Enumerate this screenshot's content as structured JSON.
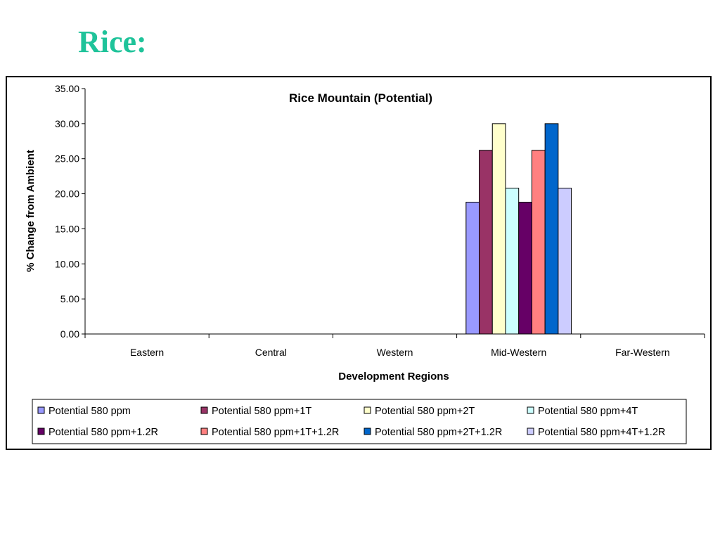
{
  "slide": {
    "title": "Rice:"
  },
  "chart_data": {
    "type": "bar",
    "title": "Rice Mountain (Potential)",
    "xlabel": "Development Regions",
    "ylabel": "% Change from Ambient",
    "ylim": [
      0,
      35
    ],
    "yticks": [
      0,
      5,
      10,
      15,
      20,
      25,
      30,
      35
    ],
    "ytick_labels": [
      "0.00",
      "5.00",
      "10.00",
      "15.00",
      "20.00",
      "25.00",
      "30.00",
      "35.00"
    ],
    "grid": false,
    "legend_position": "bottom",
    "categories": [
      "Eastern",
      "Central",
      "Western",
      "Mid-Western",
      "Far-Western"
    ],
    "series": [
      {
        "name": "Potential 580 ppm",
        "color": "#9999ff",
        "values": [
          null,
          null,
          null,
          18.8,
          null
        ]
      },
      {
        "name": "Potential 580 ppm+1T",
        "color": "#993366",
        "values": [
          null,
          null,
          null,
          26.2,
          null
        ]
      },
      {
        "name": "Potential 580 ppm+2T",
        "color": "#ffffcc",
        "values": [
          null,
          null,
          null,
          30.0,
          null
        ]
      },
      {
        "name": "Potential 580 ppm+4T",
        "color": "#ccffff",
        "values": [
          null,
          null,
          null,
          20.8,
          null
        ]
      },
      {
        "name": "Potential 580 ppm+1.2R",
        "color": "#660066",
        "values": [
          null,
          null,
          null,
          18.8,
          null
        ]
      },
      {
        "name": "Potential 580 ppm+1T+1.2R",
        "color": "#ff8080",
        "values": [
          null,
          null,
          null,
          26.2,
          null
        ]
      },
      {
        "name": "Potential 580 ppm+2T+1.2R",
        "color": "#0066cc",
        "values": [
          null,
          null,
          null,
          30.0,
          null
        ]
      },
      {
        "name": "Potential 580 ppm+4T+1.2R",
        "color": "#ccccff",
        "values": [
          null,
          null,
          null,
          20.8,
          null
        ]
      }
    ]
  }
}
